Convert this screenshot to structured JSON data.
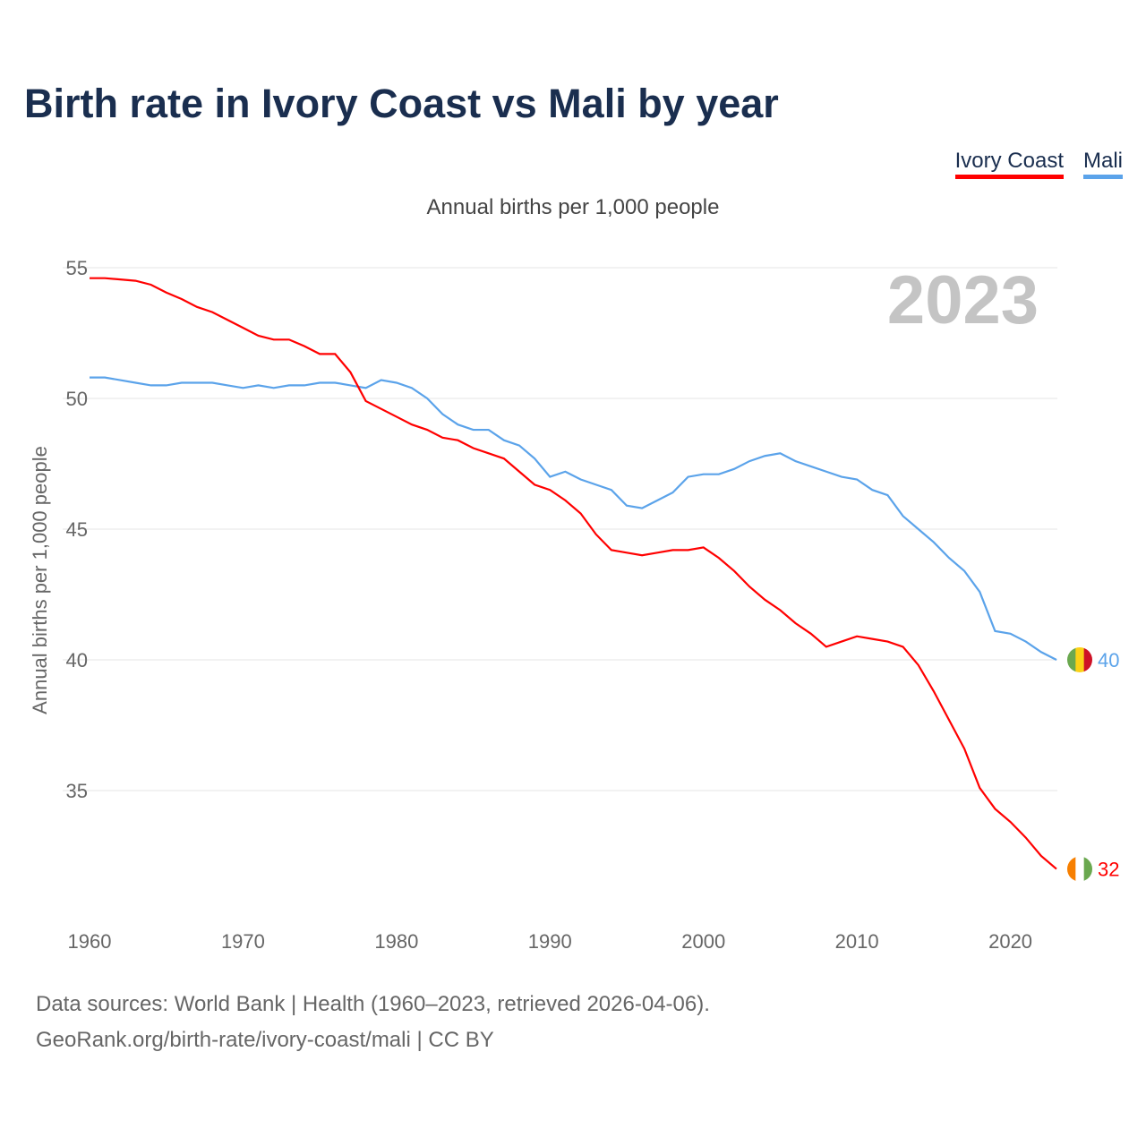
{
  "title": "Birth rate in Ivory Coast vs Mali by year",
  "footer": {
    "line1": "Data sources: World Bank | Health (1960–2023, retrieved 2026-04-06).",
    "line2": "GeoRank.org/birth-rate/ivory-coast/mali | CC BY"
  },
  "year_label": "2023",
  "chart_data": {
    "type": "line",
    "title": "Birth rate in Ivory Coast vs Mali by year",
    "subtitle": "Annual births per 1,000 people",
    "xlabel": "",
    "ylabel": "Annual births per 1,000 people",
    "xlim": [
      1960,
      2023
    ],
    "ylim": [
      31,
      56
    ],
    "xticks": [
      "1960",
      "1970",
      "1980",
      "1990",
      "2000",
      "2010",
      "2020"
    ],
    "yticks": [
      "35",
      "40",
      "45",
      "50",
      "55"
    ],
    "grid": true,
    "legend_position": "top-right",
    "x": [
      1960,
      1961,
      1962,
      1963,
      1964,
      1965,
      1966,
      1967,
      1968,
      1969,
      1970,
      1971,
      1972,
      1973,
      1974,
      1975,
      1976,
      1977,
      1978,
      1979,
      1980,
      1981,
      1982,
      1983,
      1984,
      1985,
      1986,
      1987,
      1988,
      1989,
      1990,
      1991,
      1992,
      1993,
      1994,
      1995,
      1996,
      1997,
      1998,
      1999,
      2000,
      2001,
      2002,
      2003,
      2004,
      2005,
      2006,
      2007,
      2008,
      2009,
      2010,
      2011,
      2012,
      2013,
      2014,
      2015,
      2016,
      2017,
      2018,
      2019,
      2020,
      2021,
      2022,
      2023
    ],
    "series": [
      {
        "name": "Ivory Coast",
        "color": "#ff0000",
        "end_label": "32",
        "values": [
          54.6,
          54.6,
          54.55,
          54.5,
          54.35,
          54.05,
          53.8,
          53.5,
          53.3,
          53.0,
          52.7,
          52.4,
          52.25,
          52.25,
          52.0,
          51.7,
          51.7,
          51.0,
          49.9,
          49.6,
          49.3,
          49.0,
          48.8,
          48.5,
          48.4,
          48.1,
          47.9,
          47.7,
          47.2,
          46.7,
          46.5,
          46.1,
          45.6,
          44.8,
          44.2,
          44.1,
          44.0,
          44.1,
          44.2,
          44.2,
          44.3,
          43.9,
          43.4,
          42.8,
          42.3,
          41.9,
          41.4,
          41.0,
          40.5,
          40.7,
          40.9,
          40.8,
          40.7,
          40.5,
          39.8,
          38.8,
          37.7,
          36.6,
          35.1,
          34.3,
          33.8,
          33.2,
          32.5,
          32.0
        ]
      },
      {
        "name": "Mali",
        "color": "#5ba3ea",
        "end_label": "40",
        "values": [
          50.8,
          50.8,
          50.7,
          50.6,
          50.5,
          50.5,
          50.6,
          50.6,
          50.6,
          50.5,
          50.4,
          50.5,
          50.4,
          50.5,
          50.5,
          50.6,
          50.6,
          50.5,
          50.4,
          50.7,
          50.6,
          50.4,
          50.0,
          49.4,
          49.0,
          48.8,
          48.8,
          48.4,
          48.2,
          47.7,
          47.0,
          47.2,
          46.9,
          46.7,
          46.5,
          45.9,
          45.8,
          46.1,
          46.4,
          47.0,
          47.1,
          47.1,
          47.3,
          47.6,
          47.8,
          47.9,
          47.6,
          47.4,
          47.2,
          47.0,
          46.9,
          46.5,
          46.3,
          45.5,
          45.0,
          44.5,
          43.9,
          43.4,
          42.6,
          41.1,
          41.0,
          40.7,
          40.3,
          40.0
        ]
      }
    ]
  }
}
